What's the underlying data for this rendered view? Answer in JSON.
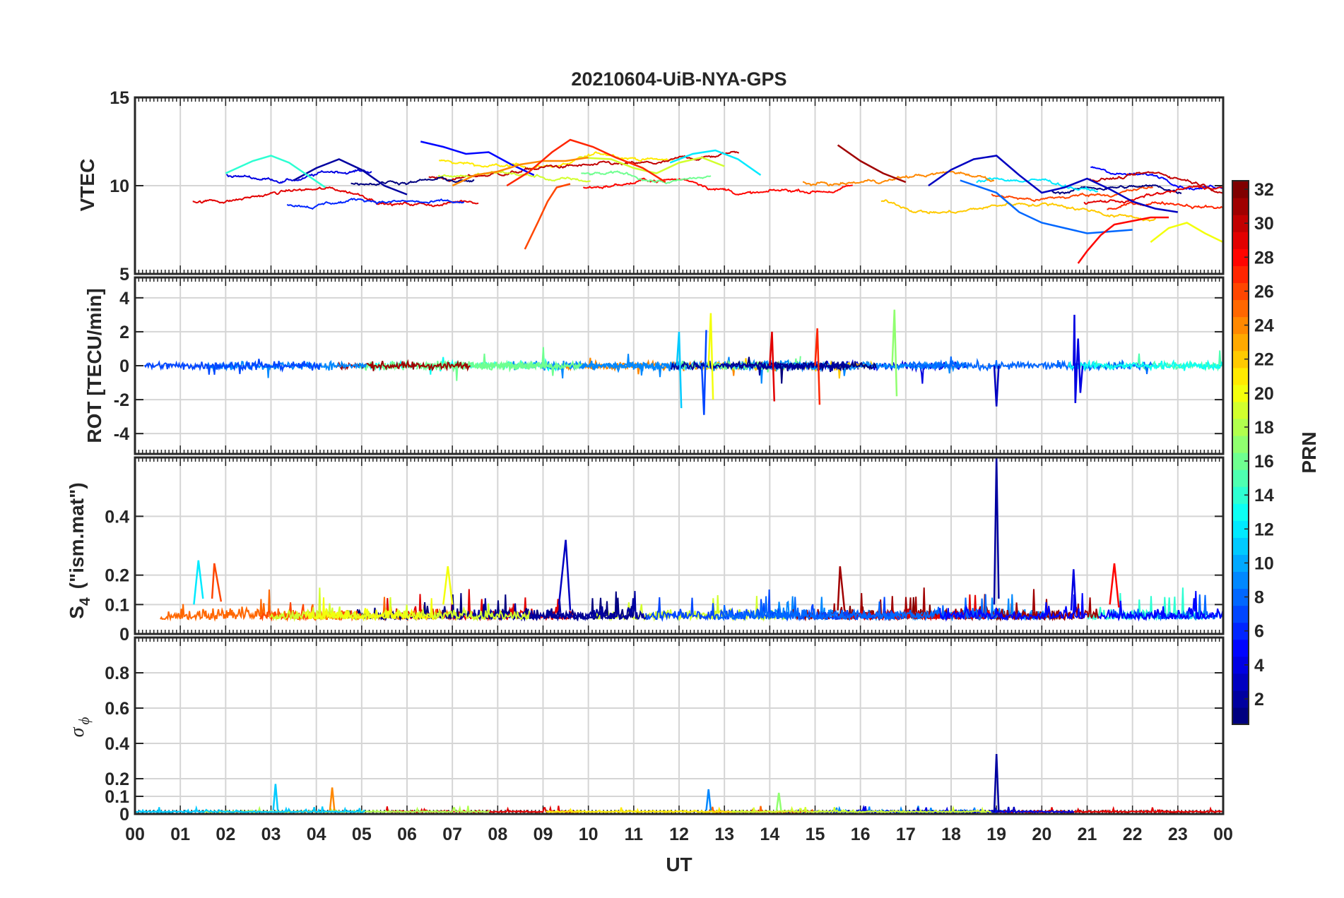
{
  "chart_data": [
    {
      "type": "line",
      "title": "20210604-UiB-NYA-GPS",
      "panel": "vtec",
      "ylabel": "VTEC",
      "xlabel": "",
      "xlim": [
        0,
        24
      ],
      "ylim": [
        5,
        15
      ],
      "yticks": [
        5,
        10,
        15
      ],
      "grid": true,
      "series": [
        {
          "name": "PRN 2",
          "prn": 2,
          "x": [
            3.5,
            4.0,
            4.5,
            5.0,
            5.5,
            6.0
          ],
          "y": [
            10.3,
            11.0,
            11.5,
            10.9,
            10.0,
            9.5
          ]
        },
        {
          "name": "PRN 5",
          "prn": 5,
          "x": [
            6.3,
            6.8,
            7.3,
            7.8,
            8.3,
            8.8
          ],
          "y": [
            12.5,
            12.2,
            11.8,
            11.9,
            11.2,
            10.6
          ]
        },
        {
          "name": "PRN 3",
          "prn": 3,
          "x": [
            17.5,
            18.0,
            18.5,
            19.0,
            19.5,
            20.0,
            20.5,
            21.0,
            21.5,
            22.0,
            22.5,
            23.0
          ],
          "y": [
            10.0,
            10.9,
            11.5,
            11.7,
            10.6,
            9.6,
            9.9,
            10.4,
            9.8,
            9.1,
            8.7,
            8.5
          ]
        },
        {
          "name": "PRN 8",
          "prn": 8,
          "x": [
            18.2,
            19.0,
            19.5,
            20.0,
            20.5,
            21.0,
            21.5,
            22.0
          ],
          "y": [
            10.3,
            9.6,
            8.5,
            7.9,
            7.6,
            7.3,
            7.4,
            7.5
          ]
        },
        {
          "name": "PRN 12",
          "prn": 12,
          "x": [
            11.8,
            12.3,
            12.8,
            13.3,
            13.8
          ],
          "y": [
            11.3,
            11.8,
            12.0,
            11.5,
            10.6
          ]
        },
        {
          "name": "PRN 14",
          "prn": 14,
          "x": [
            2.0,
            2.6,
            3.0,
            3.4,
            3.8,
            4.2
          ],
          "y": [
            10.7,
            11.4,
            11.7,
            11.3,
            10.6,
            9.9
          ]
        },
        {
          "name": "PRN 19",
          "prn": 19,
          "x": [
            9.8,
            10.5,
            11.0,
            11.5,
            12.0,
            12.5,
            13.0
          ],
          "y": [
            11.6,
            11.5,
            11.0,
            10.7,
            11.3,
            11.6,
            11.1
          ]
        },
        {
          "name": "PRN 20",
          "prn": 20,
          "x": [
            22.4,
            22.8,
            23.2,
            23.6,
            24.0
          ],
          "y": [
            6.8,
            7.6,
            7.9,
            7.3,
            6.8
          ]
        },
        {
          "name": "PRN 24",
          "prn": 24,
          "x": [
            7.0,
            7.5,
            8.0,
            8.5,
            9.0,
            9.5,
            10.0
          ],
          "y": [
            10.0,
            10.6,
            10.8,
            11.2,
            11.4,
            11.4,
            11.6
          ]
        },
        {
          "name": "PRN 26",
          "prn": 26,
          "x": [
            8.6,
            8.9,
            9.1,
            9.3,
            9.6
          ],
          "y": [
            6.4,
            8.0,
            9.1,
            9.9,
            10.1
          ]
        },
        {
          "name": "PRN 27",
          "prn": 27,
          "x": [
            8.2,
            8.7,
            9.2,
            9.6,
            10.1,
            10.6,
            11.2,
            11.7
          ],
          "y": [
            10.0,
            10.8,
            11.9,
            12.6,
            12.2,
            11.6,
            11.0,
            10.2
          ]
        },
        {
          "name": "PRN 28",
          "prn": 28,
          "x": [
            20.8,
            21.0,
            21.3,
            21.6,
            22.0,
            22.4,
            22.8
          ],
          "y": [
            5.6,
            6.3,
            7.2,
            7.8,
            8.0,
            8.2,
            8.2
          ]
        },
        {
          "name": "PRN 31",
          "prn": 31,
          "x": [
            15.5,
            16.0,
            16.5,
            17.0
          ],
          "y": [
            12.3,
            11.4,
            10.7,
            10.2
          ]
        }
      ]
    },
    {
      "type": "line",
      "panel": "rot",
      "ylabel": "ROT [TECU/min]",
      "xlim": [
        0,
        24
      ],
      "ylim": [
        -5.2,
        5.2
      ],
      "yticks": [
        -4,
        -2,
        0,
        2,
        4
      ],
      "grid": true,
      "series": [
        {
          "name": "PRN 4 spike",
          "prn": 4,
          "x": [
            20.7,
            20.72,
            20.74,
            20.8,
            20.85,
            20.9
          ],
          "y": [
            0,
            3.0,
            -2.2,
            1.6,
            -1.6,
            0
          ]
        },
        {
          "name": "PRN 3 spike",
          "prn": 3,
          "x": [
            18.95,
            19.0,
            19.05
          ],
          "y": [
            0,
            -2.4,
            0
          ]
        },
        {
          "name": "PRN 17 spike",
          "prn": 17,
          "x": [
            16.7,
            16.75,
            16.8
          ],
          "y": [
            0,
            3.3,
            -1.8
          ]
        },
        {
          "name": "PRN 20 spike",
          "prn": 20,
          "x": [
            12.65,
            12.7,
            12.75
          ],
          "y": [
            0,
            3.1,
            -2.0
          ]
        },
        {
          "name": "PRN 11 spike",
          "prn": 11,
          "x": [
            11.95,
            12.0,
            12.05
          ],
          "y": [
            0,
            2.0,
            -2.5
          ]
        },
        {
          "name": "PRN 7 spike",
          "prn": 7,
          "x": [
            12.5,
            12.55,
            12.6
          ],
          "y": [
            0,
            -2.9,
            2.1
          ]
        },
        {
          "name": "PRN 29 spike",
          "prn": 29,
          "x": [
            14.0,
            14.05,
            14.1
          ],
          "y": [
            0,
            2.0,
            -2.1
          ]
        },
        {
          "name": "PRN 27 spike",
          "prn": 27,
          "x": [
            15.0,
            15.05,
            15.1
          ],
          "y": [
            0,
            2.2,
            -2.3
          ]
        }
      ]
    },
    {
      "type": "line",
      "panel": "s4",
      "ylabel_main": "S",
      "ylabel_sub": "4",
      "ylabel_rest": "(\"ism.mat\")",
      "xlim": [
        0,
        24
      ],
      "ylim": [
        0,
        0.6
      ],
      "yticks": [
        0,
        0.1,
        0.2,
        0.4
      ],
      "grid": true,
      "series": [
        {
          "name": "PRN 2 peak",
          "prn": 2,
          "x": [
            18.95,
            19.0,
            19.05
          ],
          "y": [
            0.1,
            0.6,
            0.12
          ]
        },
        {
          "name": "PRN 3 peak",
          "prn": 3,
          "x": [
            9.35,
            9.5,
            9.6
          ],
          "y": [
            0.1,
            0.32,
            0.08
          ]
        },
        {
          "name": "PRN 12 peak",
          "prn": 12,
          "x": [
            1.3,
            1.4,
            1.5
          ],
          "y": [
            0.1,
            0.25,
            0.12
          ]
        },
        {
          "name": "PRN 26 peak",
          "prn": 26,
          "x": [
            1.7,
            1.75,
            1.9
          ],
          "y": [
            0.12,
            0.24,
            0.11
          ]
        },
        {
          "name": "PRN 20 peak",
          "prn": 20,
          "x": [
            6.8,
            6.9,
            7.0
          ],
          "y": [
            0.1,
            0.23,
            0.1
          ]
        },
        {
          "name": "PRN 28 peak",
          "prn": 28,
          "x": [
            21.5,
            21.6,
            21.7
          ],
          "y": [
            0.1,
            0.24,
            0.09
          ]
        },
        {
          "name": "PRN 4 peak",
          "prn": 4,
          "x": [
            20.65,
            20.7,
            20.75
          ],
          "y": [
            0.08,
            0.22,
            0.08
          ]
        },
        {
          "name": "PRN 31 peak",
          "prn": 31,
          "x": [
            15.5,
            15.55,
            15.65
          ],
          "y": [
            0.08,
            0.23,
            0.08
          ]
        }
      ]
    },
    {
      "type": "line",
      "panel": "sigma_phi",
      "ylabel_symbol": "σ",
      "ylabel_sub": "ϕ",
      "xlabel": "UT",
      "xlim": [
        0,
        24
      ],
      "ylim": [
        0,
        1.0
      ],
      "yticks": [
        0,
        0.1,
        0.2,
        0.4,
        0.6,
        0.8
      ],
      "grid": true,
      "series": [
        {
          "name": "PRN 2 peak",
          "prn": 2,
          "x": [
            18.95,
            19.0,
            19.05
          ],
          "y": [
            0.01,
            0.34,
            0.01
          ]
        },
        {
          "name": "PRN 11 peak",
          "prn": 11,
          "x": [
            3.05,
            3.1,
            3.15
          ],
          "y": [
            0.02,
            0.17,
            0.02
          ]
        },
        {
          "name": "PRN 24 peak",
          "prn": 24,
          "x": [
            4.3,
            4.35,
            4.4
          ],
          "y": [
            0.02,
            0.15,
            0.02
          ]
        },
        {
          "name": "PRN 9 peak",
          "prn": 9,
          "x": [
            12.6,
            12.65,
            12.7
          ],
          "y": [
            0.02,
            0.14,
            0.02
          ]
        },
        {
          "name": "PRN 17 peak",
          "prn": 17,
          "x": [
            14.15,
            14.2,
            14.25
          ],
          "y": [
            0.02,
            0.12,
            0.02
          ]
        }
      ]
    }
  ],
  "xticks": [
    "00",
    "01",
    "02",
    "03",
    "04",
    "05",
    "06",
    "07",
    "08",
    "09",
    "10",
    "11",
    "12",
    "13",
    "14",
    "15",
    "16",
    "17",
    "18",
    "19",
    "20",
    "21",
    "22",
    "23",
    "00"
  ],
  "colorbar": {
    "label": "PRN",
    "range": [
      1,
      32
    ],
    "ticks": [
      2,
      4,
      6,
      8,
      10,
      12,
      14,
      16,
      18,
      20,
      22,
      24,
      26,
      28,
      30,
      32
    ],
    "colormap": "jet"
  }
}
